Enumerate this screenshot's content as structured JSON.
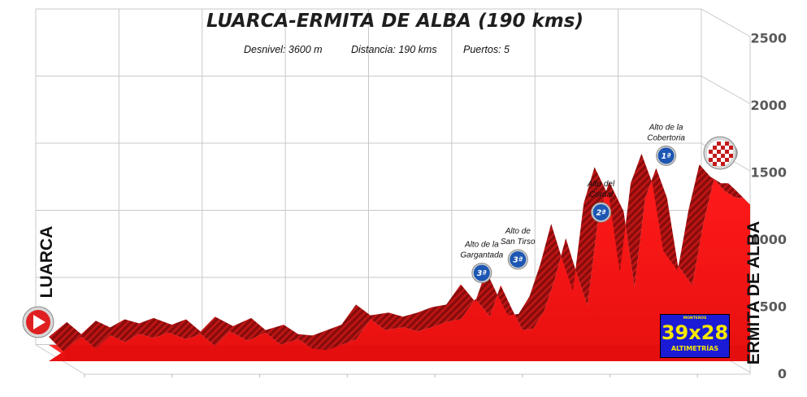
{
  "chart_data": {
    "type": "area",
    "title": "LUARCA-ERMITA DE ALBA (190 kms)",
    "stats": {
      "desnivel": "Desnivel: 3600 m",
      "distancia": "Distancia: 190 kms",
      "puertos": "Puertos:   5"
    },
    "start_label": "LUARCA",
    "finish_label": "ERMITA DE ALBA",
    "y_ticks": [
      "0",
      "500",
      "1000",
      "1500",
      "2000",
      "2500"
    ],
    "ylim": [
      0,
      2500
    ],
    "xlim": [
      0,
      190
    ],
    "grid": true,
    "series": [
      {
        "x": [
          0,
          5,
          9,
          13,
          17,
          21,
          25,
          29,
          34,
          38,
          42,
          46,
          51,
          56,
          60,
          65,
          69,
          73,
          77,
          81,
          85,
          89,
          94,
          98,
          102,
          106,
          110,
          114,
          118,
          121,
          124,
          127,
          130,
          133,
          136,
          139,
          142,
          145,
          148,
          151,
          155,
          158,
          161,
          164,
          167,
          170,
          174,
          177,
          180,
          183,
          186,
          188,
          190
        ],
        "values": [
          60,
          170,
          80,
          180,
          130,
          190,
          160,
          200,
          150,
          190,
          100,
          210,
          140,
          200,
          110,
          150,
          80,
          70,
          110,
          150,
          300,
          220,
          240,
          210,
          240,
          280,
          300,
          450,
          320,
          550,
          380,
          220,
          230,
          360,
          600,
          900,
          640,
          400,
          1050,
          1320,
          1100,
          540,
          1200,
          1420,
          1200,
          700,
          550,
          1000,
          1340,
          1250,
          1200,
          1200,
          1150
        ]
      }
    ],
    "climbs": [
      {
        "name_line1": "Alto de la",
        "name_line2": "Gargantada",
        "category": "3ª",
        "km": 118,
        "alt": 450
      },
      {
        "name_line1": "Alto de",
        "name_line2": "San Tirso",
        "category": "3ª",
        "km": 128,
        "alt": 550
      },
      {
        "name_line1": "Alto del",
        "name_line2": "Cordal",
        "category": "2ª",
        "km": 151,
        "alt": 900
      },
      {
        "name_line1": "Alto de la",
        "name_line2": "Cobertoria",
        "category": "1ª",
        "km": 169,
        "alt": 1320
      },
      {
        "name_line1": "",
        "name_line2": "",
        "category": "ESP",
        "km": 186,
        "alt": 1340
      }
    ]
  },
  "logo": {
    "top_text": "MONTEROS",
    "main_text": "39x28",
    "bottom_text": "ALTIMETRÍAS"
  },
  "colors": {
    "profile_fill": "#ff2020",
    "profile_lower": "#ee1010",
    "profile_edge": "#8b0000",
    "badge_blue": "#1d57b3",
    "start_red": "#e02020"
  }
}
